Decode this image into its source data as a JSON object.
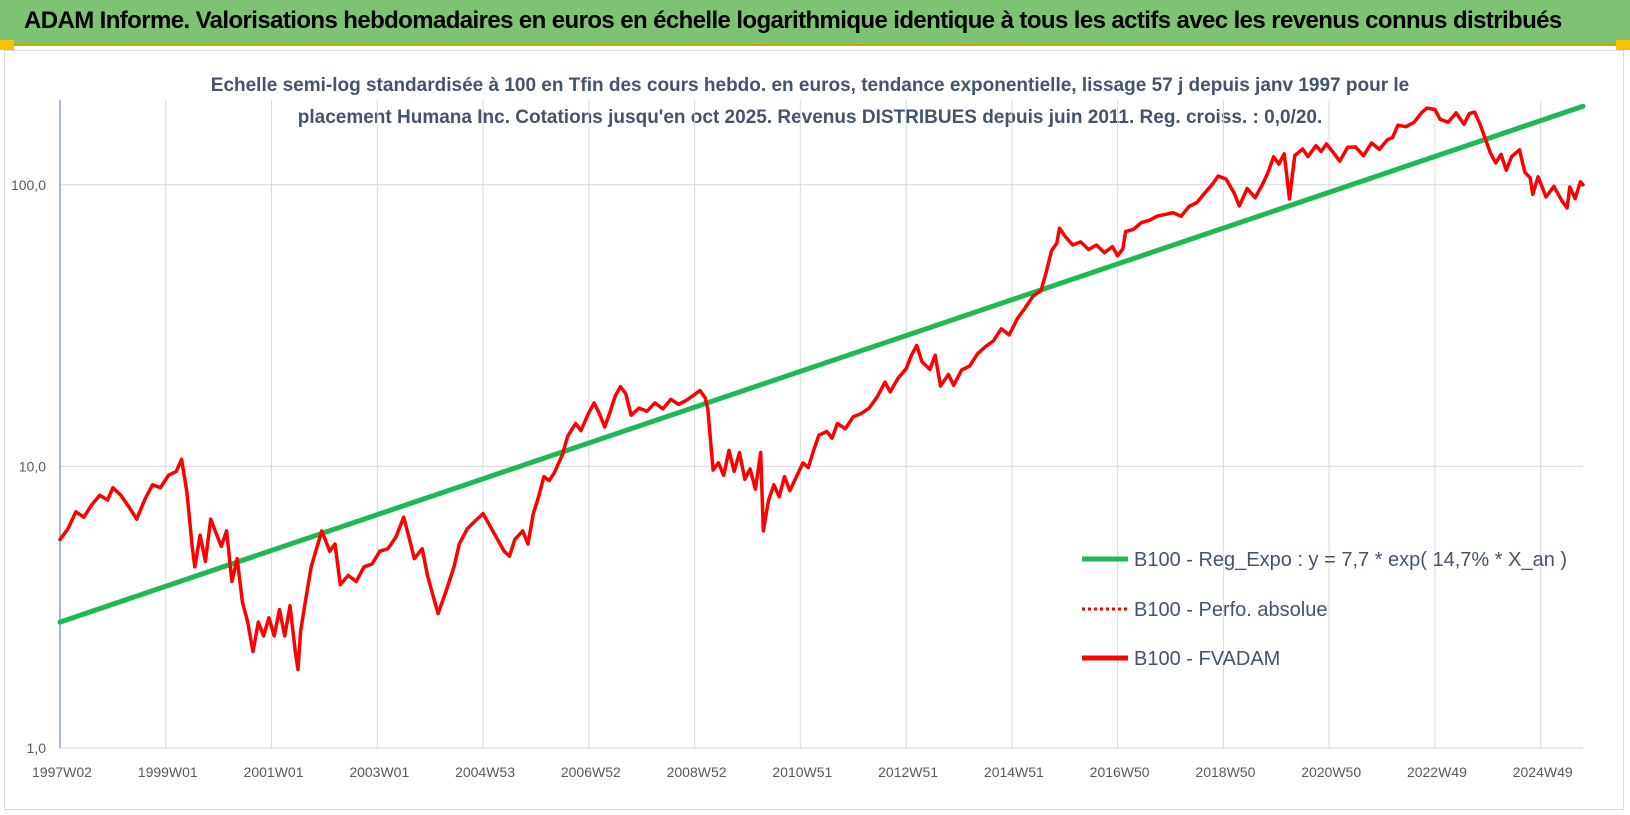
{
  "header": {
    "title": "ADAM Informe. Valorisations hebdomadaires en euros en échelle logarithmique identique à tous les actifs avec les revenus connus distribués"
  },
  "colors": {
    "header_bg": "#7dc472",
    "accent": "#f5c300",
    "trend": "#1db954",
    "fvadam": "#ff0000",
    "perf": "#ff0000"
  },
  "chart_data": {
    "type": "line",
    "title_lines": [
      "Echelle semi-log standardisée à 100 en Tfin des cours hebdo. en euros, tendance exponentielle, lissage 57 j depuis janv 1997 pour le",
      "placement Humana Inc. Cotations jusqu'en oct 2025. Revenus DISTRIBUES depuis juin 2011. Reg. croiss. : 0,0/20."
    ],
    "y_scale": "log",
    "ylim": [
      1,
      200
    ],
    "y_ticks": [
      {
        "value": 1,
        "label": "1,0"
      },
      {
        "value": 10,
        "label": "10,0"
      },
      {
        "value": 100,
        "label": "100,0"
      }
    ],
    "xlim": [
      1997.0,
      2025.8
    ],
    "x_ticks": [
      {
        "x": 1997.0,
        "label": "1997W02"
      },
      {
        "x": 1999.0,
        "label": "1999W01"
      },
      {
        "x": 2001.0,
        "label": "2001W01"
      },
      {
        "x": 2003.0,
        "label": "2003W01"
      },
      {
        "x": 2005.0,
        "label": "2004W53"
      },
      {
        "x": 2007.0,
        "label": "2006W52"
      },
      {
        "x": 2009.0,
        "label": "2008W52"
      },
      {
        "x": 2011.0,
        "label": "2010W51"
      },
      {
        "x": 2013.0,
        "label": "2012W51"
      },
      {
        "x": 2015.0,
        "label": "2014W51"
      },
      {
        "x": 2017.0,
        "label": "2016W50"
      },
      {
        "x": 2019.0,
        "label": "2018W50"
      },
      {
        "x": 2021.0,
        "label": "2020W50"
      },
      {
        "x": 2023.0,
        "label": "2022W49"
      },
      {
        "x": 2025.0,
        "label": "2024W49"
      }
    ],
    "grid": "vertical-and-horizontal",
    "legend_position": "right-middle",
    "series": [
      {
        "name": "B100 - Reg_Expo : y = 7,7 * exp( 14,7% *  X_an )",
        "style": "solid-green",
        "points": [
          [
            1997.0,
            2.8
          ],
          [
            2025.8,
            190
          ]
        ]
      },
      {
        "name": "B100 - Perfo. absolue",
        "style": "dotted-red",
        "points": []
      },
      {
        "name": "B100 - FVADAM",
        "style": "solid-red",
        "points": [
          [
            1997.0,
            5.5
          ],
          [
            1997.15,
            6.0
          ],
          [
            1997.3,
            6.9
          ],
          [
            1997.45,
            6.6
          ],
          [
            1997.6,
            7.3
          ],
          [
            1997.75,
            7.9
          ],
          [
            1997.9,
            7.6
          ],
          [
            1998.0,
            8.4
          ],
          [
            1998.15,
            7.9
          ],
          [
            1998.3,
            7.2
          ],
          [
            1998.45,
            6.5
          ],
          [
            1998.6,
            7.6
          ],
          [
            1998.75,
            8.6
          ],
          [
            1998.9,
            8.4
          ],
          [
            1999.05,
            9.3
          ],
          [
            1999.2,
            9.6
          ],
          [
            1999.3,
            10.6
          ],
          [
            1999.4,
            8.1
          ],
          [
            1999.5,
            5.2
          ],
          [
            1999.55,
            4.4
          ],
          [
            1999.65,
            5.7
          ],
          [
            1999.75,
            4.6
          ],
          [
            1999.85,
            6.5
          ],
          [
            1999.95,
            5.8
          ],
          [
            2000.05,
            5.2
          ],
          [
            2000.15,
            5.9
          ],
          [
            2000.25,
            3.9
          ],
          [
            2000.35,
            4.7
          ],
          [
            2000.45,
            3.3
          ],
          [
            2000.55,
            2.8
          ],
          [
            2000.65,
            2.2
          ],
          [
            2000.75,
            2.8
          ],
          [
            2000.85,
            2.5
          ],
          [
            2000.95,
            2.9
          ],
          [
            2001.05,
            2.5
          ],
          [
            2001.15,
            3.1
          ],
          [
            2001.25,
            2.5
          ],
          [
            2001.35,
            3.2
          ],
          [
            2001.45,
            2.2
          ],
          [
            2001.5,
            1.9
          ],
          [
            2001.55,
            2.6
          ],
          [
            2001.65,
            3.4
          ],
          [
            2001.75,
            4.4
          ],
          [
            2001.85,
            5.1
          ],
          [
            2001.95,
            5.9
          ],
          [
            2002.1,
            5.0
          ],
          [
            2002.2,
            5.3
          ],
          [
            2002.3,
            3.8
          ],
          [
            2002.45,
            4.1
          ],
          [
            2002.6,
            3.9
          ],
          [
            2002.75,
            4.4
          ],
          [
            2002.9,
            4.5
          ],
          [
            2003.05,
            5.0
          ],
          [
            2003.2,
            5.1
          ],
          [
            2003.35,
            5.6
          ],
          [
            2003.5,
            6.6
          ],
          [
            2003.6,
            5.6
          ],
          [
            2003.7,
            4.7
          ],
          [
            2003.85,
            5.1
          ],
          [
            2003.95,
            4.1
          ],
          [
            2004.05,
            3.5
          ],
          [
            2004.15,
            3.0
          ],
          [
            2004.3,
            3.6
          ],
          [
            2004.45,
            4.4
          ],
          [
            2004.55,
            5.3
          ],
          [
            2004.7,
            6.0
          ],
          [
            2004.85,
            6.4
          ],
          [
            2005.0,
            6.8
          ],
          [
            2005.1,
            6.3
          ],
          [
            2005.25,
            5.6
          ],
          [
            2005.4,
            5.0
          ],
          [
            2005.5,
            4.8
          ],
          [
            2005.6,
            5.5
          ],
          [
            2005.75,
            5.9
          ],
          [
            2005.85,
            5.3
          ],
          [
            2005.95,
            6.8
          ],
          [
            2006.05,
            7.8
          ],
          [
            2006.15,
            9.2
          ],
          [
            2006.25,
            8.9
          ],
          [
            2006.35,
            9.5
          ],
          [
            2006.5,
            11.0
          ],
          [
            2006.6,
            12.8
          ],
          [
            2006.75,
            14.2
          ],
          [
            2006.85,
            13.4
          ],
          [
            2007.0,
            15.5
          ],
          [
            2007.1,
            16.8
          ],
          [
            2007.2,
            15.4
          ],
          [
            2007.3,
            13.8
          ],
          [
            2007.4,
            15.6
          ],
          [
            2007.5,
            17.8
          ],
          [
            2007.6,
            19.2
          ],
          [
            2007.7,
            18.1
          ],
          [
            2007.8,
            15.2
          ],
          [
            2007.95,
            16.1
          ],
          [
            2008.1,
            15.7
          ],
          [
            2008.25,
            16.8
          ],
          [
            2008.4,
            16.0
          ],
          [
            2008.55,
            17.3
          ],
          [
            2008.7,
            16.6
          ],
          [
            2008.85,
            17.2
          ],
          [
            2009.0,
            18.0
          ],
          [
            2009.1,
            18.6
          ],
          [
            2009.2,
            17.5
          ],
          [
            2009.25,
            16.0
          ],
          [
            2009.35,
            9.7
          ],
          [
            2009.45,
            10.3
          ],
          [
            2009.55,
            9.3
          ],
          [
            2009.65,
            11.4
          ],
          [
            2009.75,
            9.6
          ],
          [
            2009.85,
            11.2
          ],
          [
            2009.95,
            9.0
          ],
          [
            2010.05,
            9.8
          ],
          [
            2010.15,
            8.3
          ],
          [
            2010.25,
            11.2
          ],
          [
            2010.3,
            5.9
          ],
          [
            2010.4,
            7.6
          ],
          [
            2010.5,
            8.6
          ],
          [
            2010.6,
            7.8
          ],
          [
            2010.7,
            9.2
          ],
          [
            2010.8,
            8.2
          ],
          [
            2010.95,
            9.4
          ],
          [
            2011.05,
            10.3
          ],
          [
            2011.15,
            9.9
          ],
          [
            2011.25,
            11.4
          ],
          [
            2011.35,
            12.9
          ],
          [
            2011.5,
            13.3
          ],
          [
            2011.6,
            12.6
          ],
          [
            2011.7,
            14.2
          ],
          [
            2011.85,
            13.6
          ],
          [
            2012.0,
            15.0
          ],
          [
            2012.15,
            15.4
          ],
          [
            2012.3,
            16.1
          ],
          [
            2012.45,
            17.6
          ],
          [
            2012.6,
            19.9
          ],
          [
            2012.7,
            18.4
          ],
          [
            2012.85,
            20.6
          ],
          [
            2013.0,
            22.2
          ],
          [
            2013.1,
            24.8
          ],
          [
            2013.2,
            26.9
          ],
          [
            2013.3,
            23.5
          ],
          [
            2013.45,
            22.1
          ],
          [
            2013.55,
            24.8
          ],
          [
            2013.65,
            19.3
          ],
          [
            2013.8,
            21.2
          ],
          [
            2013.9,
            19.4
          ],
          [
            2014.05,
            22.0
          ],
          [
            2014.2,
            22.7
          ],
          [
            2014.35,
            25.1
          ],
          [
            2014.5,
            26.6
          ],
          [
            2014.65,
            27.9
          ],
          [
            2014.8,
            30.8
          ],
          [
            2014.95,
            29.3
          ],
          [
            2015.1,
            33.4
          ],
          [
            2015.25,
            36.5
          ],
          [
            2015.4,
            40.2
          ],
          [
            2015.55,
            42.1
          ],
          [
            2015.65,
            48.9
          ],
          [
            2015.75,
            58.3
          ],
          [
            2015.85,
            62.0
          ],
          [
            2015.9,
            70.1
          ],
          [
            2016.0,
            65.8
          ],
          [
            2016.15,
            61.1
          ],
          [
            2016.3,
            62.7
          ],
          [
            2016.45,
            58.9
          ],
          [
            2016.6,
            61.1
          ],
          [
            2016.75,
            57.4
          ],
          [
            2016.9,
            60.3
          ],
          [
            2017.0,
            56.0
          ],
          [
            2017.1,
            59.3
          ],
          [
            2017.15,
            68.2
          ],
          [
            2017.3,
            69.5
          ],
          [
            2017.45,
            73.4
          ],
          [
            2017.6,
            74.8
          ],
          [
            2017.75,
            77.4
          ],
          [
            2017.9,
            78.5
          ],
          [
            2018.05,
            79.6
          ],
          [
            2018.2,
            77.3
          ],
          [
            2018.35,
            83.7
          ],
          [
            2018.5,
            86.5
          ],
          [
            2018.65,
            93.6
          ],
          [
            2018.8,
            100.9
          ],
          [
            2018.9,
            107.4
          ],
          [
            2019.05,
            104.8
          ],
          [
            2019.2,
            93.7
          ],
          [
            2019.3,
            84.1
          ],
          [
            2019.45,
            97.0
          ],
          [
            2019.6,
            89.9
          ],
          [
            2019.75,
            101.4
          ],
          [
            2019.85,
            111.4
          ],
          [
            2019.95,
            125.7
          ],
          [
            2020.05,
            118.4
          ],
          [
            2020.15,
            128.8
          ],
          [
            2020.25,
            89.0
          ],
          [
            2020.35,
            127.0
          ],
          [
            2020.5,
            134.0
          ],
          [
            2020.6,
            125.9
          ],
          [
            2020.75,
            137.6
          ],
          [
            2020.85,
            131.3
          ],
          [
            2020.95,
            139.7
          ],
          [
            2021.05,
            132.2
          ],
          [
            2021.2,
            121.4
          ],
          [
            2021.35,
            135.8
          ],
          [
            2021.5,
            136.2
          ],
          [
            2021.65,
            126.8
          ],
          [
            2021.8,
            140.7
          ],
          [
            2021.95,
            133.5
          ],
          [
            2022.1,
            144.4
          ],
          [
            2022.2,
            147.2
          ],
          [
            2022.3,
            162.7
          ],
          [
            2022.45,
            160.8
          ],
          [
            2022.6,
            166.3
          ],
          [
            2022.75,
            180.4
          ],
          [
            2022.85,
            187.2
          ],
          [
            2023.0,
            185.0
          ],
          [
            2023.1,
            170.6
          ],
          [
            2023.25,
            166.8
          ],
          [
            2023.4,
            180.0
          ],
          [
            2023.55,
            164.0
          ],
          [
            2023.65,
            178.9
          ],
          [
            2023.75,
            181.1
          ],
          [
            2023.85,
            164.7
          ],
          [
            2024.05,
            129.6
          ],
          [
            2024.15,
            119.6
          ],
          [
            2024.25,
            128.2
          ],
          [
            2024.35,
            112.7
          ],
          [
            2024.45,
            125.9
          ],
          [
            2024.6,
            133.1
          ],
          [
            2024.7,
            110.8
          ],
          [
            2024.8,
            105.9
          ],
          [
            2024.85,
            92.5
          ],
          [
            2024.95,
            106.7
          ],
          [
            2025.1,
            90.5
          ],
          [
            2025.25,
            98.8
          ],
          [
            2025.4,
            87.8
          ],
          [
            2025.5,
            82.7
          ],
          [
            2025.55,
            98.2
          ],
          [
            2025.65,
            89.3
          ],
          [
            2025.75,
            102.5
          ],
          [
            2025.8,
            100.0
          ]
        ]
      }
    ]
  }
}
